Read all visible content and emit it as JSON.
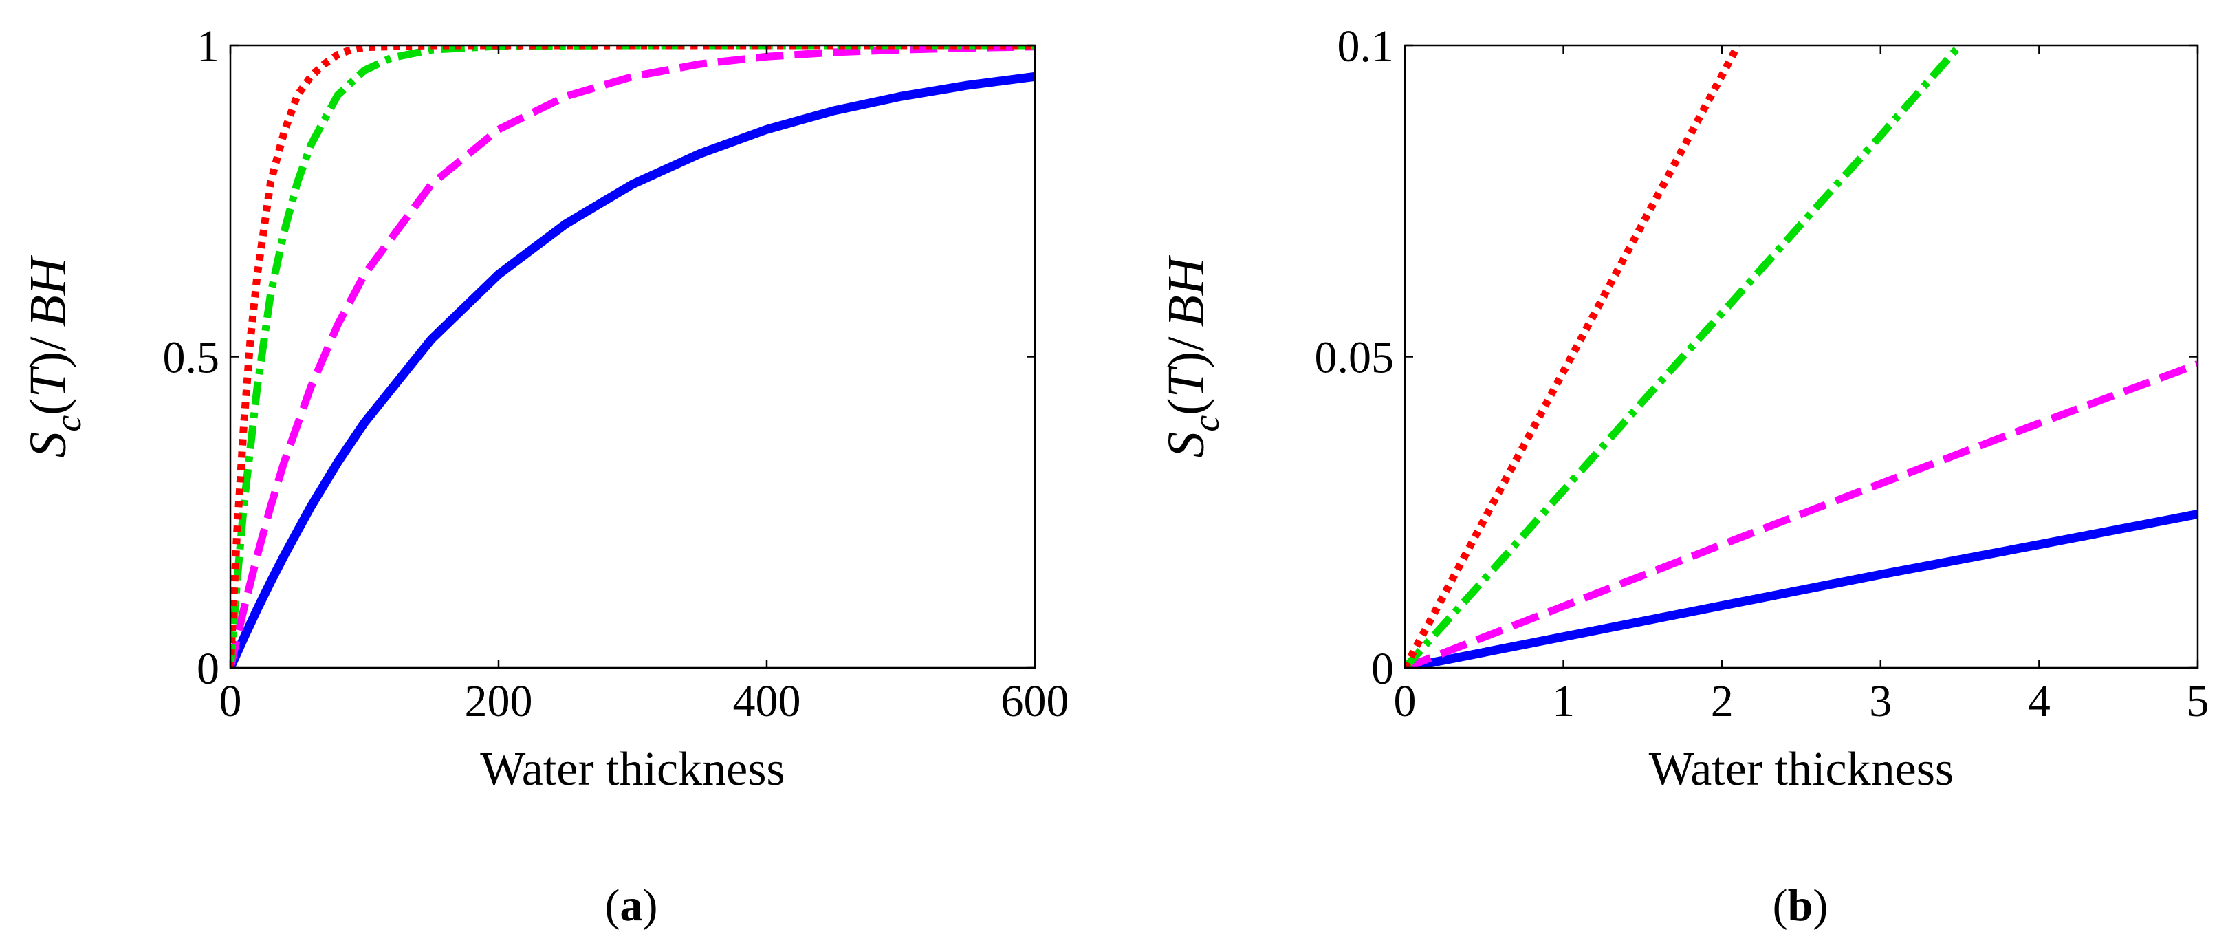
{
  "chart_data": [
    {
      "panel": "a",
      "type": "line",
      "caption_open": "(",
      "caption_letter": "a",
      "caption_close": ")",
      "xlabel": "Water thickness",
      "ylabel": {
        "s": "S",
        "sub": "c",
        "open": "(",
        "t": "T",
        "close": ")/",
        "bh": "BH"
      },
      "xlim": [
        0,
        600
      ],
      "ylim": [
        0,
        1
      ],
      "xticks": [
        0,
        200,
        400,
        600
      ],
      "xtick_labels": [
        "0",
        "200",
        "400",
        "600"
      ],
      "yticks": [
        0,
        0.5,
        1
      ],
      "ytick_labels": [
        "0",
        "0.5",
        "1"
      ],
      "series": [
        {
          "name": "solid",
          "color": "#0000ff",
          "style": "solid",
          "x": [
            0,
            5,
            10,
            20,
            30,
            40,
            60,
            80,
            100,
            150,
            200,
            250,
            300,
            350,
            400,
            450,
            500,
            550,
            600
          ],
          "y": [
            0,
            0.024,
            0.048,
            0.094,
            0.138,
            0.18,
            0.259,
            0.33,
            0.394,
            0.528,
            0.632,
            0.713,
            0.777,
            0.826,
            0.865,
            0.895,
            0.918,
            0.936,
            0.95
          ]
        },
        {
          "name": "dashed",
          "color": "#ff00ff",
          "style": "dashed",
          "x": [
            0,
            5,
            10,
            20,
            30,
            40,
            60,
            80,
            100,
            150,
            200,
            250,
            300,
            350,
            400,
            450,
            500,
            550,
            600
          ],
          "y": [
            0,
            0.048,
            0.094,
            0.18,
            0.259,
            0.33,
            0.451,
            0.551,
            0.632,
            0.777,
            0.865,
            0.918,
            0.95,
            0.97,
            0.982,
            0.989,
            0.993,
            0.996,
            0.998
          ]
        },
        {
          "name": "dash-dot",
          "color": "#00dd00",
          "style": "dashdot",
          "x": [
            0,
            5,
            10,
            20,
            30,
            40,
            50,
            60,
            70,
            80,
            90,
            100,
            120,
            150,
            200,
            300,
            600
          ],
          "y": [
            0,
            0.14,
            0.26,
            0.45,
            0.6,
            0.7,
            0.78,
            0.84,
            0.88,
            0.92,
            0.94,
            0.96,
            0.98,
            0.993,
            0.999,
            1.0,
            1.0
          ]
        },
        {
          "name": "dotted",
          "color": "#ff0000",
          "style": "dotted",
          "x": [
            0,
            2,
            5,
            10,
            15,
            20,
            30,
            40,
            50,
            60,
            70,
            80,
            90,
            100,
            150,
            600
          ],
          "y": [
            0,
            0.09,
            0.22,
            0.39,
            0.53,
            0.63,
            0.78,
            0.86,
            0.92,
            0.95,
            0.97,
            0.985,
            0.993,
            0.997,
            1.0,
            1.0
          ]
        }
      ]
    },
    {
      "panel": "b",
      "type": "line",
      "caption_open": "(",
      "caption_letter": "b",
      "caption_close": ")",
      "xlabel": "Water thickness",
      "ylabel": {
        "s": "S",
        "sub": "c",
        "open": "(",
        "t": "T",
        "close": ")/",
        "bh": "BH"
      },
      "xlim": [
        0,
        5
      ],
      "ylim": [
        0,
        0.1
      ],
      "xticks": [
        0,
        1,
        2,
        3,
        4,
        5
      ],
      "xtick_labels": [
        "0",
        "1",
        "2",
        "3",
        "4",
        "5"
      ],
      "yticks": [
        0,
        0.05,
        0.1
      ],
      "ytick_labels": [
        "0",
        "0.05",
        "0.1"
      ],
      "series": [
        {
          "name": "solid",
          "color": "#0000ff",
          "style": "solid",
          "x": [
            0,
            1,
            2,
            3,
            4,
            5
          ],
          "y": [
            0,
            0.005,
            0.01,
            0.015,
            0.0198,
            0.0247
          ]
        },
        {
          "name": "dashed",
          "color": "#ff00ff",
          "style": "dashed",
          "x": [
            0,
            1,
            2,
            3,
            4,
            5
          ],
          "y": [
            0,
            0.0099,
            0.0198,
            0.0296,
            0.0393,
            0.0488
          ]
        },
        {
          "name": "dash-dot",
          "color": "#00dd00",
          "style": "dashdot",
          "x": [
            0,
            0.5,
            1,
            1.5,
            2,
            2.5,
            3,
            3.5
          ],
          "y": [
            0,
            0.0142,
            0.0285,
            0.0428,
            0.057,
            0.0713,
            0.0855,
            0.1
          ]
        },
        {
          "name": "dotted",
          "color": "#ff0000",
          "style": "dotted",
          "x": [
            0,
            0.5,
            1,
            1.5,
            2,
            2.1
          ],
          "y": [
            0,
            0.0238,
            0.0476,
            0.0714,
            0.0952,
            0.1
          ]
        }
      ]
    }
  ]
}
